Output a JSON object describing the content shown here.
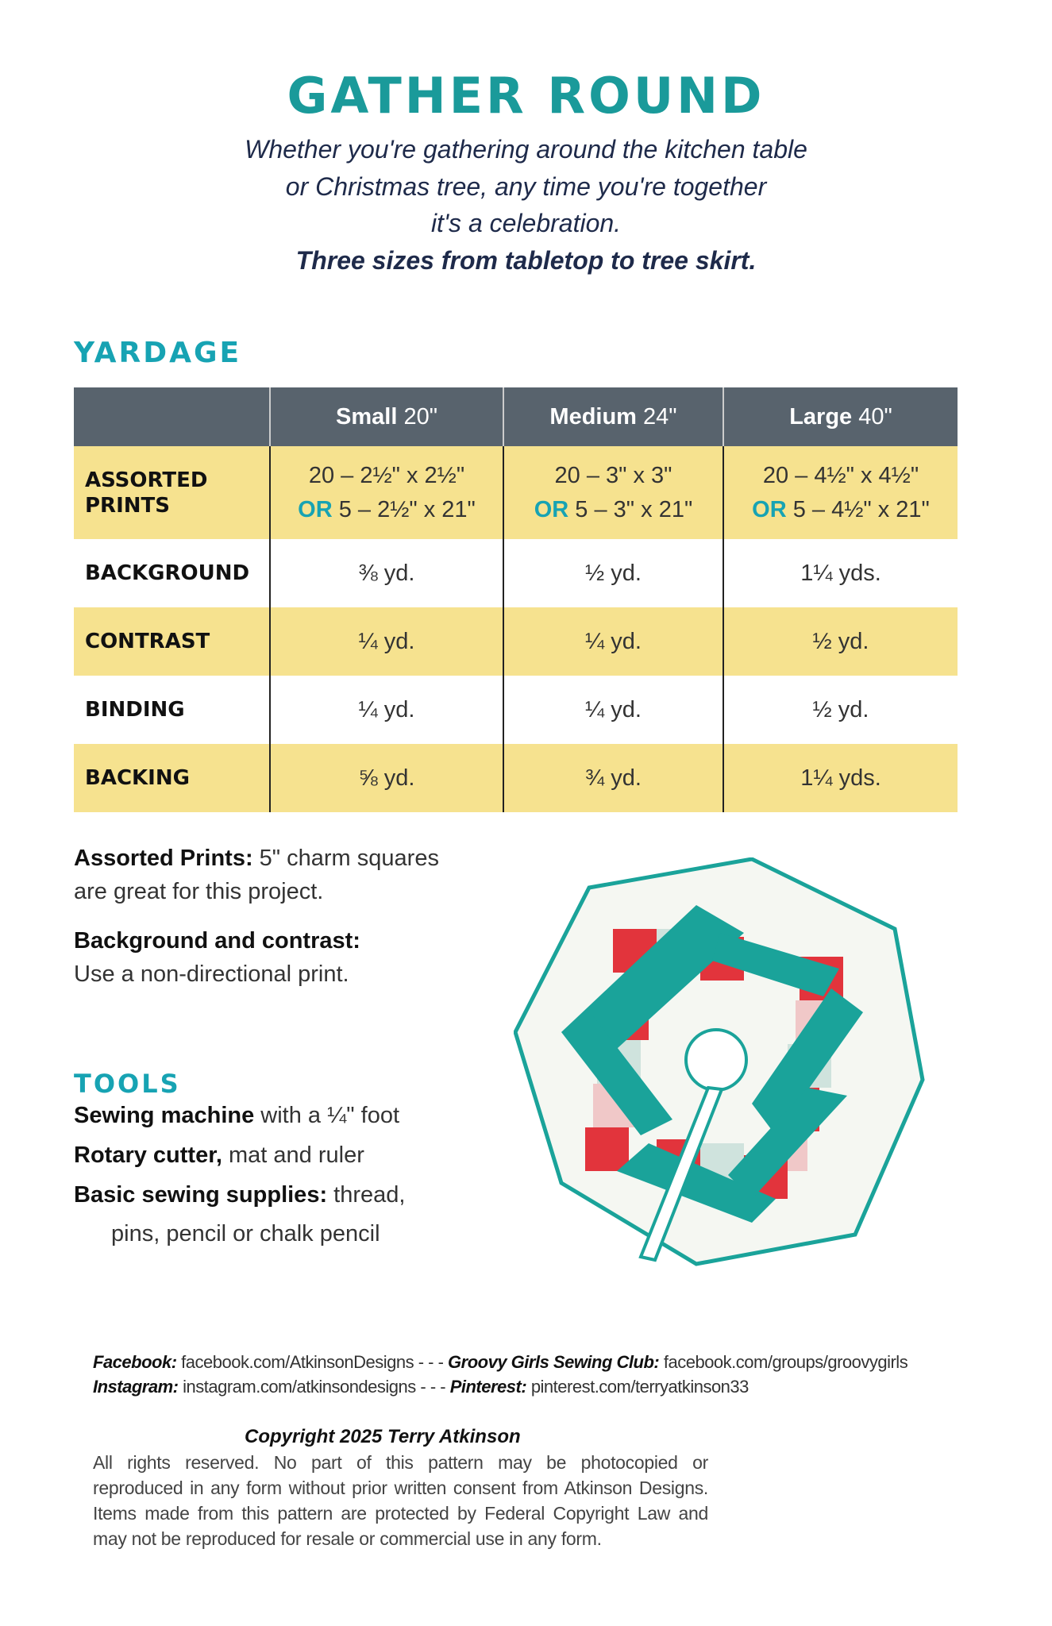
{
  "title": "GATHER ROUND",
  "subtitle": [
    "Whether you're gathering around the kitchen table",
    "or Christmas tree, any time you're together",
    "it's a celebration.",
    "Three sizes from tabletop to tree skirt."
  ],
  "yardage": {
    "heading": "YARDAGE",
    "columns": [
      {
        "name": "Small",
        "size": "20\""
      },
      {
        "name": "Medium",
        "size": "24\""
      },
      {
        "name": "Large",
        "size": "40\""
      }
    ],
    "or_label": "OR",
    "assorted": {
      "label": "ASSORTED PRINTS",
      "line1": [
        "20 – 2½\" x 2½\"",
        "20 – 3\" x 3\"",
        "20 – 4½\" x 4½\""
      ],
      "line2": [
        "5 – 2½\" x 21\"",
        "5 – 3\" x 21\"",
        "5 – 4½\" x 21\""
      ]
    },
    "rows": [
      {
        "label": "BACKGROUND",
        "values": [
          "⅜ yd.",
          "½ yd.",
          "1¼ yds."
        ]
      },
      {
        "label": "CONTRAST",
        "values": [
          "¼ yd.",
          "¼ yd.",
          "½ yd."
        ]
      },
      {
        "label": "BINDING",
        "values": [
          "¼ yd.",
          "¼ yd.",
          "½ yd."
        ]
      },
      {
        "label": "BACKING",
        "values": [
          "⅝ yd.",
          "¾ yd.",
          "1¼ yds."
        ]
      }
    ]
  },
  "notes": [
    {
      "bold": "Assorted Prints:",
      "text": " 5\" charm squares",
      "text2": "are great for this project."
    },
    {
      "bold": "Background and contrast:",
      "text2": "Use a non-directional print."
    }
  ],
  "tools": {
    "heading": "TOOLS",
    "items": [
      {
        "bold": "Sewing machine",
        "text": " with a ¼\" foot"
      },
      {
        "bold": "Rotary cutter,",
        "text": " mat and ruler"
      },
      {
        "bold": "Basic sewing supplies:",
        "text": "  thread,",
        "text2": "pins, pencil or chalk pencil"
      }
    ]
  },
  "social": [
    [
      {
        "label": "Facebook:",
        "value": "facebook.com/AtkinsonDesigns"
      },
      {
        "label": "Groovy Girls Sewing Club:",
        "value": "facebook.com/groups/groovygirls"
      }
    ],
    [
      {
        "label": "Instagram:",
        "value": "instagram.com/atkinsondesigns"
      },
      {
        "label": "Pinterest:",
        "value": "pinterest.com/terryatkinson33"
      }
    ]
  ],
  "separator": " - - - ",
  "copyright": {
    "heading": "Copyright 2025 Terry Atkinson",
    "lines": [
      "All rights reserved. No part of this pattern may be photocopied or",
      "reproduced in any form without prior written consent from Atkinson Designs.",
      "Items made from this pattern are protected by Federal Copyright Law and",
      "may not be reproduced for resale or commercial use in any form."
    ]
  },
  "colors": {
    "teal": "#1a9a9a",
    "header": "#58636d",
    "yellow": "#f6e28f",
    "red": "#e2343c"
  }
}
